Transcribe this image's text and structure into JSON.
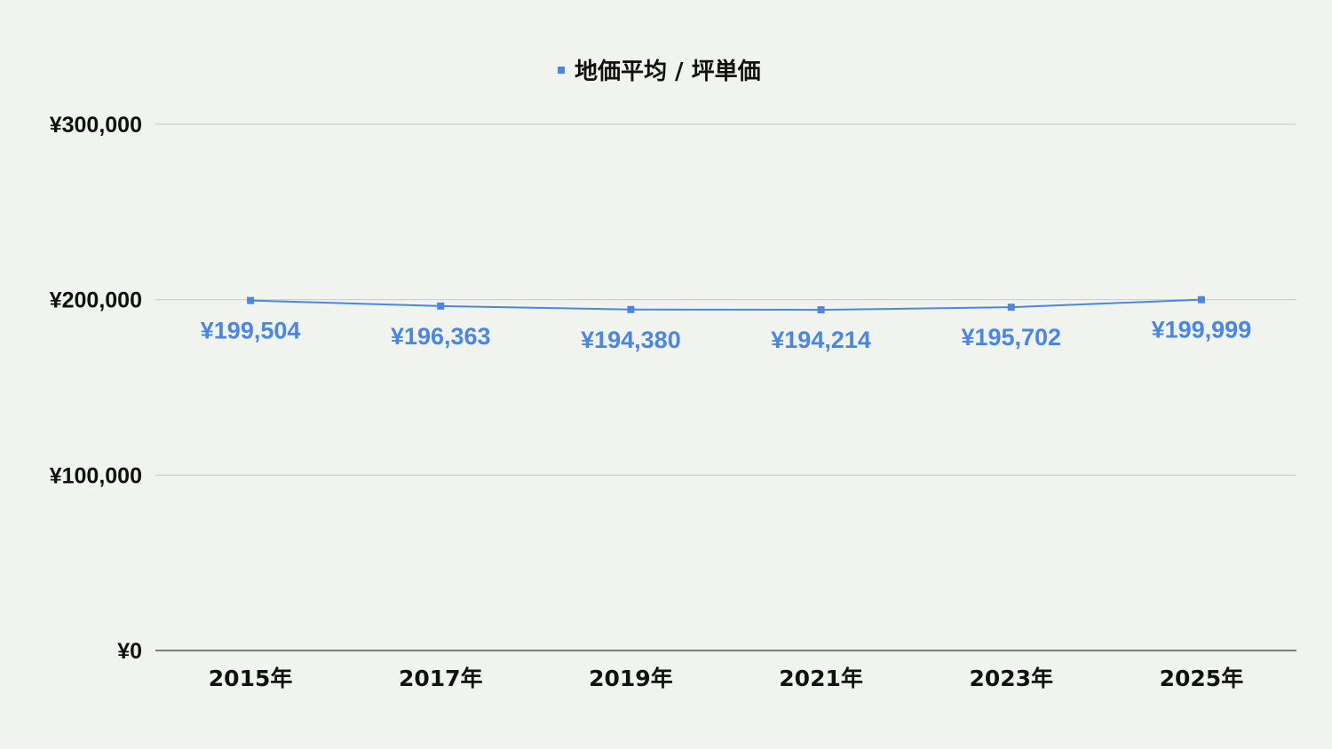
{
  "chart_data": {
    "type": "line",
    "categories": [
      "2015年",
      "2017年",
      "2019年",
      "2021年",
      "2023年",
      "2025年"
    ],
    "series": [
      {
        "name": "地価平均 / 坪単価",
        "values": [
          199504,
          196363,
          194380,
          194214,
          195702,
          199999
        ],
        "labels": [
          "¥199,504",
          "¥196,363",
          "¥194,380",
          "¥194,214",
          "¥195,702",
          "¥199,999"
        ],
        "color": "#4a86e8"
      }
    ],
    "ylim": [
      0,
      300000
    ],
    "y_ticks": [
      {
        "value": 0,
        "label": "¥0"
      },
      {
        "value": 100000,
        "label": "¥100,000"
      },
      {
        "value": 200000,
        "label": "¥200,000"
      },
      {
        "value": 300000,
        "label": "¥300,000"
      }
    ],
    "grid": true,
    "legend_position": "top-center",
    "title": "",
    "xlabel": "",
    "ylabel": ""
  },
  "colors": {
    "background": "#f1f3ee",
    "series": "#4a86e8",
    "grid": "#c9ccc6",
    "text": "#111111"
  }
}
